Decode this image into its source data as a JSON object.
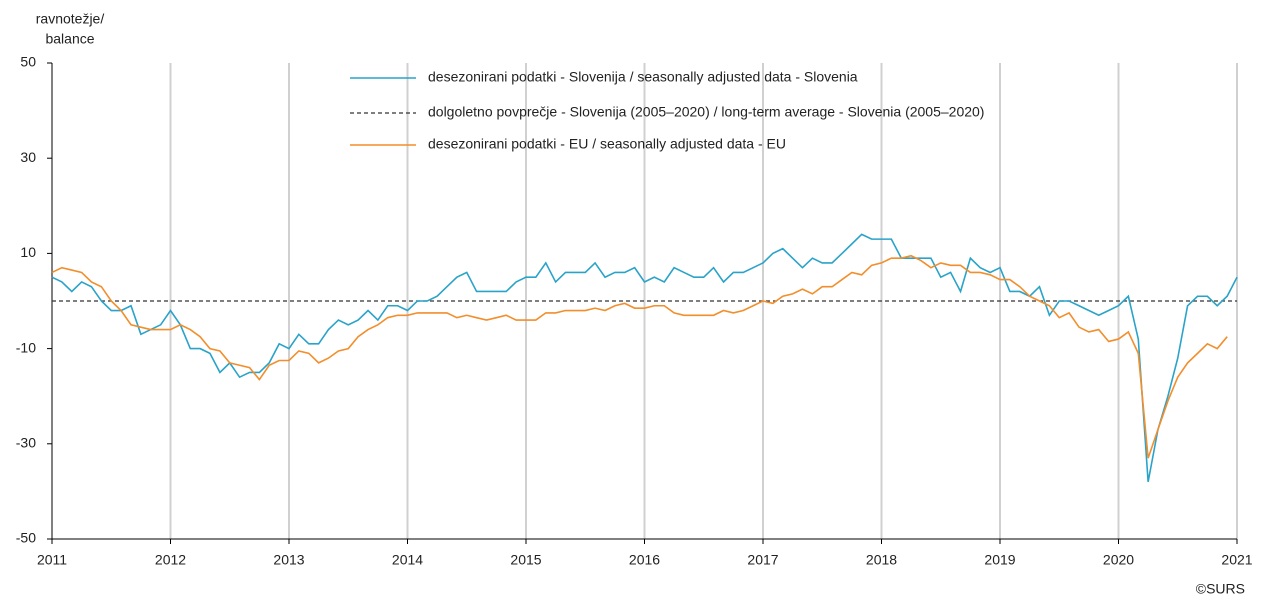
{
  "chart_data": {
    "type": "line",
    "ylabel": [
      "ravnotežje/",
      "balance"
    ],
    "source": "©SURS",
    "xlim": [
      2011,
      2021
    ],
    "xticks": [
      2011,
      2012,
      2013,
      2014,
      2015,
      2016,
      2017,
      2018,
      2019,
      2020,
      2021
    ],
    "ylim": [
      -50,
      50
    ],
    "yticks": [
      -50,
      -30,
      -10,
      10,
      30,
      50
    ],
    "grid": true,
    "x": [
      2011,
      2011.083,
      2011.167,
      2011.25,
      2011.333,
      2011.417,
      2011.5,
      2011.583,
      2011.667,
      2011.75,
      2011.833,
      2011.917,
      2012,
      2012.083,
      2012.167,
      2012.25,
      2012.333,
      2012.417,
      2012.5,
      2012.583,
      2012.667,
      2012.75,
      2012.833,
      2012.917,
      2013,
      2013.083,
      2013.167,
      2013.25,
      2013.333,
      2013.417,
      2013.5,
      2013.583,
      2013.667,
      2013.75,
      2013.833,
      2013.917,
      2014,
      2014.083,
      2014.167,
      2014.25,
      2014.333,
      2014.417,
      2014.5,
      2014.583,
      2014.667,
      2014.75,
      2014.833,
      2014.917,
      2015,
      2015.083,
      2015.167,
      2015.25,
      2015.333,
      2015.417,
      2015.5,
      2015.583,
      2015.667,
      2015.75,
      2015.833,
      2015.917,
      2016,
      2016.083,
      2016.167,
      2016.25,
      2016.333,
      2016.417,
      2016.5,
      2016.583,
      2016.667,
      2016.75,
      2016.833,
      2016.917,
      2017,
      2017.083,
      2017.167,
      2017.25,
      2017.333,
      2017.417,
      2017.5,
      2017.583,
      2017.667,
      2017.75,
      2017.833,
      2017.917,
      2018,
      2018.083,
      2018.167,
      2018.25,
      2018.333,
      2018.417,
      2018.5,
      2018.583,
      2018.667,
      2018.75,
      2018.833,
      2018.917,
      2019,
      2019.083,
      2019.167,
      2019.25,
      2019.333,
      2019.417,
      2019.5,
      2019.583,
      2019.667,
      2019.75,
      2019.833,
      2019.917,
      2020,
      2020.083,
      2020.167,
      2020.25,
      2020.333,
      2020.417,
      2020.5,
      2020.583,
      2020.667,
      2020.75,
      2020.833,
      2020.917,
      2021
    ],
    "series": [
      {
        "name": "desezonirani podatki - Slovenija / seasonally adjusted data - Slovenia",
        "color": "#2aa3c9",
        "values": [
          5,
          4,
          2,
          4,
          3,
          0,
          -2,
          -2,
          -1,
          -7,
          -6,
          -5,
          -2,
          -5,
          -10,
          -10,
          -11,
          -15,
          -13,
          -16,
          -15,
          -15,
          -13,
          -9,
          -10,
          -7,
          -9,
          -9,
          -6,
          -4,
          -5,
          -4,
          -2,
          -4,
          -1,
          -1,
          -2,
          0,
          0,
          1,
          3,
          5,
          6,
          2,
          2,
          2,
          2,
          4,
          5,
          5,
          8,
          4,
          6,
          6,
          6,
          8,
          5,
          6,
          6,
          7,
          4,
          5,
          4,
          7,
          6,
          5,
          5,
          7,
          4,
          6,
          6,
          7,
          8,
          10,
          11,
          9,
          7,
          9,
          8,
          8,
          10,
          12,
          14,
          13,
          13,
          13,
          9,
          9,
          9,
          9,
          5,
          6,
          2,
          9,
          7,
          6,
          7,
          2,
          2,
          1,
          3,
          -3,
          0,
          0,
          -1,
          -2,
          -3,
          -2,
          -1,
          1,
          -8,
          -38,
          -27,
          -20,
          -12,
          -1,
          1,
          1,
          -1,
          1,
          5
        ]
      },
      {
        "name": "desezonirani podatki - EU / seasonally adjusted data - EU",
        "color": "#f28e2b",
        "values": [
          6,
          7,
          6.5,
          6,
          4,
          3,
          0,
          -2,
          -5,
          -5.5,
          -6,
          -6,
          -6,
          -5,
          -6,
          -7.5,
          -10,
          -10.5,
          -13,
          -13.5,
          -14,
          -16.5,
          -13.5,
          -12.5,
          -12.5,
          -10.5,
          -11,
          -13,
          -12,
          -10.5,
          -10,
          -7.5,
          -6,
          -5,
          -3.5,
          -3,
          -3,
          -2.5,
          -2.5,
          -2.5,
          -2.5,
          -3.5,
          -3,
          -3.5,
          -4,
          -3.5,
          -3,
          -4,
          -4,
          -4,
          -2.5,
          -2.5,
          -2,
          -2,
          -2,
          -1.5,
          -2,
          -1,
          -0.5,
          -1.5,
          -1.5,
          -1,
          -1,
          -2.5,
          -3,
          -3,
          -3,
          -3,
          -2,
          -2.5,
          -2,
          -1,
          0,
          -0.5,
          1,
          1.5,
          2.5,
          1.5,
          3,
          3,
          4.5,
          6,
          5.5,
          7.5,
          8,
          9,
          9,
          9.5,
          8.5,
          7,
          8,
          7.5,
          7.5,
          6,
          6,
          5.5,
          4.5,
          4.5,
          3,
          1,
          0,
          -1,
          -3.5,
          -2.5,
          -5.5,
          -6.5,
          -6,
          -8.5,
          -8,
          -6.5,
          -11,
          -33,
          -27,
          -21,
          -16,
          -13,
          -11,
          -9,
          -10,
          -7.5,
          null
        ]
      }
    ],
    "average": {
      "name": "dolgoletno povprečje - Slovenija (2005–2020) / long-term average - Slovenia (2005–2020)",
      "value": 0,
      "color": "#333333"
    },
    "legend": "top"
  }
}
